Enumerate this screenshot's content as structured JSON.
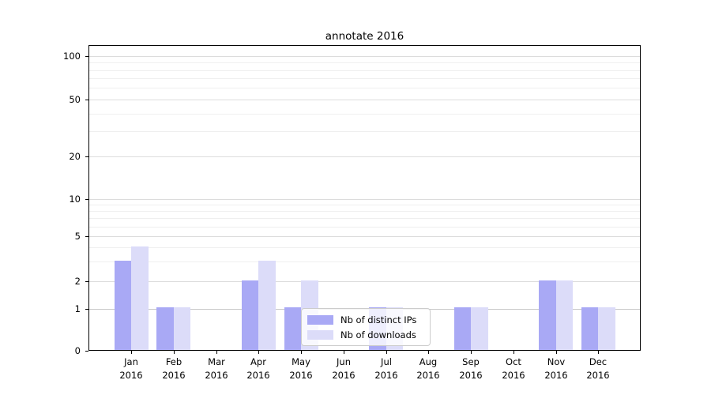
{
  "title": "annotate 2016",
  "chart_data": {
    "type": "bar",
    "title": "annotate 2016",
    "categories": [
      "Jan 2016",
      "Feb 2016",
      "Mar 2016",
      "Apr 2016",
      "May 2016",
      "Jun 2016",
      "Jul 2016",
      "Aug 2016",
      "Sep 2016",
      "Oct 2016",
      "Nov 2016",
      "Dec 2016"
    ],
    "series": [
      {
        "name": "Nb of distinct IPs",
        "color": "#a9a9f5",
        "values": [
          3,
          1,
          0,
          2,
          1,
          0,
          1,
          0,
          1,
          0,
          2,
          1
        ]
      },
      {
        "name": "Nb of downloads",
        "color": "#dcdcf9",
        "values": [
          4,
          1,
          0,
          3,
          2,
          0,
          1,
          0,
          1,
          0,
          2,
          1
        ]
      }
    ],
    "xlabel": "",
    "ylabel": "",
    "yticks": [
      0,
      1,
      2,
      5,
      10,
      20,
      50,
      100
    ],
    "yscale": "log-like (linear segment from 0 to 1, logarithmic above 1)",
    "ylim": [
      0,
      120
    ],
    "grid": "horizontal major and minor gridlines",
    "legend_position": "inside axes, lower center"
  },
  "colors": {
    "bar_distinct_ips": "#a9a9f5",
    "bar_downloads": "#dcdcf9",
    "grid_major": "#dcdcdc",
    "grid_minor": "#efefef",
    "spine": "#000000",
    "legend_border": "#cccccc"
  }
}
